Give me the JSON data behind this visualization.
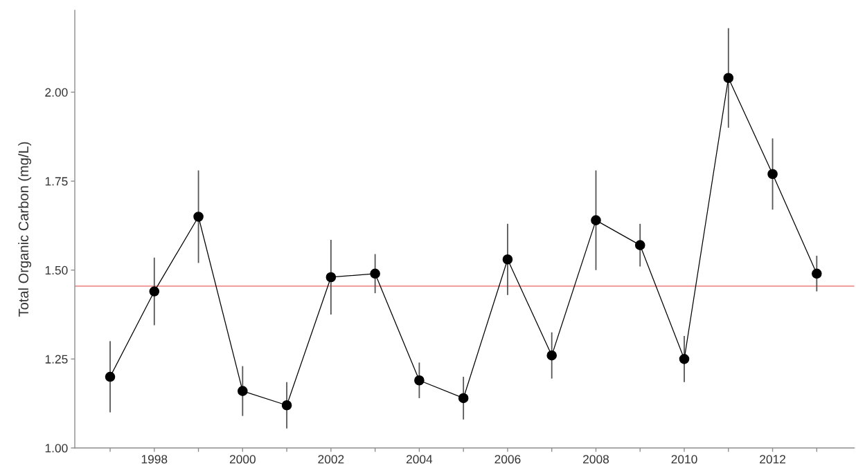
{
  "chart_data": {
    "type": "line",
    "ylabel": "Total Organic Carbon (mg/L)",
    "x": [
      1997,
      1998,
      1999,
      2000,
      2001,
      2002,
      2003,
      2004,
      2005,
      2006,
      2007,
      2008,
      2009,
      2010,
      2011,
      2012,
      2013
    ],
    "values": [
      1.2,
      1.44,
      1.65,
      1.16,
      1.12,
      1.48,
      1.49,
      1.19,
      1.14,
      1.53,
      1.26,
      1.64,
      1.57,
      1.25,
      2.04,
      1.77,
      1.49
    ],
    "errors": [
      0.1,
      0.095,
      0.13,
      0.07,
      0.065,
      0.105,
      0.055,
      0.05,
      0.06,
      0.1,
      0.065,
      0.14,
      0.06,
      0.065,
      0.14,
      0.1,
      0.05
    ],
    "color": "#000000",
    "marker": "circle",
    "line_style": "solid",
    "xlim": [
      1996.2,
      2013.85
    ],
    "ylim": [
      1.0,
      2.23
    ],
    "xticks": [
      {
        "value": 1997,
        "label": null
      },
      1998,
      {
        "value": 1999,
        "label": null
      },
      2000,
      {
        "value": 2001,
        "label": null
      },
      2002,
      {
        "value": 2003,
        "label": null
      },
      2004,
      {
        "value": 2005,
        "label": null
      },
      2006,
      {
        "value": 2007,
        "label": null
      },
      2008,
      {
        "value": 2009,
        "label": null
      },
      2010,
      {
        "value": 2011,
        "label": null
      },
      2012,
      {
        "value": 2013,
        "label": null
      }
    ],
    "yticks": [
      {
        "value": 1.0,
        "label": "1.00"
      },
      {
        "value": 1.25,
        "label": "1.25"
      },
      {
        "value": 1.5,
        "label": "1.50"
      },
      {
        "value": 1.75,
        "label": "1.75"
      },
      {
        "value": 2.0,
        "label": "2.00"
      }
    ],
    "ref_lines": [
      {
        "axis": "y",
        "value": 1.455,
        "color": "#f2a3a3",
        "line_style": "solid"
      }
    ],
    "grid": false
  }
}
